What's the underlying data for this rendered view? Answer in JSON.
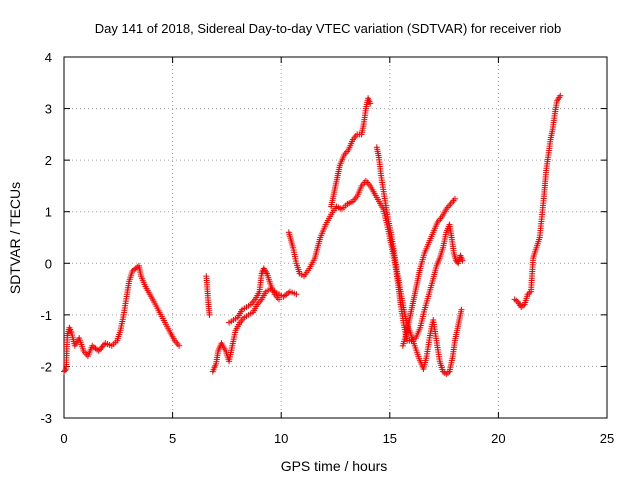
{
  "chart_data": {
    "type": "scatter",
    "title": "Day 141 of 2018, Sidereal Day-to-day VTEC variation (SDTVAR) for receiver riob",
    "xlabel": "GPS time / hours",
    "ylabel": "SDTVAR / TECUs",
    "xlim": [
      0,
      25
    ],
    "ylim": [
      -3,
      4
    ],
    "x_ticks": [
      "0",
      "5",
      "10",
      "15",
      "20",
      "25"
    ],
    "y_ticks": [
      "-3",
      "-2",
      "-1",
      "0",
      "1",
      "2",
      "3",
      "4"
    ],
    "grid": true,
    "marker": "+",
    "color": "#ff0000",
    "series": [
      {
        "name": "SDTVAR",
        "segments": [
          [
            [
              0.0,
              -2.1
            ],
            [
              0.1,
              -2.05
            ],
            [
              0.15,
              -1.4
            ],
            [
              0.25,
              -1.25
            ],
            [
              0.35,
              -1.35
            ],
            [
              0.5,
              -1.6
            ],
            [
              0.7,
              -1.45
            ],
            [
              0.9,
              -1.7
            ],
            [
              1.1,
              -1.8
            ],
            [
              1.3,
              -1.6
            ],
            [
              1.6,
              -1.7
            ],
            [
              1.9,
              -1.55
            ],
            [
              2.2,
              -1.6
            ],
            [
              2.45,
              -1.5
            ],
            [
              2.6,
              -1.3
            ],
            [
              2.75,
              -1.0
            ],
            [
              2.9,
              -0.6
            ],
            [
              3.0,
              -0.35
            ],
            [
              3.15,
              -0.15
            ],
            [
              3.3,
              -0.1
            ],
            [
              3.45,
              -0.05
            ],
            [
              3.55,
              -0.25
            ],
            [
              3.75,
              -0.45
            ],
            [
              3.95,
              -0.6
            ],
            [
              4.15,
              -0.75
            ],
            [
              4.4,
              -0.95
            ],
            [
              4.65,
              -1.15
            ],
            [
              4.9,
              -1.35
            ],
            [
              5.1,
              -1.5
            ],
            [
              5.3,
              -1.6
            ]
          ],
          [
            [
              6.55,
              -0.25
            ],
            [
              6.6,
              -0.5
            ],
            [
              6.65,
              -0.8
            ],
            [
              6.7,
              -1.0
            ]
          ],
          [
            [
              6.85,
              -2.1
            ],
            [
              7.0,
              -1.95
            ],
            [
              7.1,
              -1.7
            ],
            [
              7.25,
              -1.55
            ],
            [
              7.45,
              -1.7
            ],
            [
              7.6,
              -1.9
            ],
            [
              7.75,
              -1.6
            ],
            [
              7.9,
              -1.3
            ],
            [
              8.1,
              -1.15
            ],
            [
              8.3,
              -1.05
            ],
            [
              8.5,
              -1.0
            ],
            [
              8.7,
              -0.95
            ],
            [
              8.9,
              -0.8
            ],
            [
              9.1,
              -0.7
            ],
            [
              9.3,
              -0.55
            ],
            [
              9.5,
              -0.5
            ],
            [
              9.7,
              -0.55
            ],
            [
              9.9,
              -0.6
            ],
            [
              10.1,
              -0.65
            ],
            [
              10.4,
              -0.55
            ],
            [
              10.7,
              -0.6
            ]
          ],
          [
            [
              7.6,
              -1.15
            ],
            [
              7.8,
              -1.1
            ],
            [
              8.0,
              -1.05
            ],
            [
              8.2,
              -0.9
            ],
            [
              8.4,
              -0.85
            ],
            [
              8.6,
              -0.8
            ],
            [
              8.8,
              -0.7
            ],
            [
              9.0,
              -0.55
            ],
            [
              9.1,
              -0.2
            ],
            [
              9.2,
              -0.1
            ],
            [
              9.35,
              -0.2
            ],
            [
              9.5,
              -0.4
            ],
            [
              9.7,
              -0.6
            ],
            [
              9.9,
              -0.7
            ]
          ],
          [
            [
              10.35,
              0.6
            ],
            [
              10.45,
              0.45
            ],
            [
              10.55,
              0.3
            ],
            [
              10.7,
              0.0
            ],
            [
              10.85,
              -0.2
            ],
            [
              11.05,
              -0.25
            ],
            [
              11.3,
              -0.1
            ],
            [
              11.55,
              0.1
            ],
            [
              11.8,
              0.5
            ],
            [
              12.05,
              0.75
            ],
            [
              12.3,
              0.95
            ],
            [
              12.55,
              1.1
            ],
            [
              12.8,
              1.05
            ],
            [
              13.05,
              1.15
            ],
            [
              13.3,
              1.2
            ],
            [
              13.5,
              1.3
            ],
            [
              13.7,
              1.5
            ],
            [
              13.9,
              1.6
            ],
            [
              14.1,
              1.5
            ],
            [
              14.3,
              1.35
            ],
            [
              14.5,
              1.2
            ],
            [
              14.7,
              1.05
            ],
            [
              14.9,
              0.7
            ],
            [
              15.05,
              0.4
            ],
            [
              15.2,
              0.1
            ],
            [
              15.35,
              -0.3
            ],
            [
              15.5,
              -0.8
            ],
            [
              15.65,
              -1.2
            ],
            [
              15.8,
              -1.5
            ],
            [
              16.0,
              -1.5
            ],
            [
              16.2,
              -1.45
            ],
            [
              16.4,
              -1.25
            ],
            [
              16.6,
              -0.9
            ],
            [
              16.8,
              -0.6
            ],
            [
              17.0,
              -0.3
            ],
            [
              17.15,
              -0.05
            ],
            [
              17.3,
              0.1
            ],
            [
              17.45,
              0.3
            ],
            [
              17.6,
              0.6
            ],
            [
              17.75,
              0.75
            ],
            [
              17.85,
              0.5
            ],
            [
              17.95,
              0.2
            ],
            [
              18.05,
              0.05
            ],
            [
              18.15,
              0.0
            ],
            [
              18.25,
              0.15
            ],
            [
              18.35,
              0.05
            ]
          ],
          [
            [
              12.3,
              1.1
            ],
            [
              12.5,
              1.5
            ],
            [
              12.7,
              1.9
            ],
            [
              12.9,
              2.1
            ],
            [
              13.1,
              2.2
            ],
            [
              13.3,
              2.4
            ],
            [
              13.5,
              2.5
            ],
            [
              13.7,
              2.5
            ],
            [
              13.8,
              2.7
            ],
            [
              13.9,
              3.0
            ],
            [
              14.0,
              3.2
            ],
            [
              14.1,
              3.1
            ]
          ],
          [
            [
              14.4,
              2.25
            ],
            [
              14.5,
              2.05
            ],
            [
              14.6,
              1.7
            ],
            [
              14.75,
              1.3
            ],
            [
              14.9,
              0.9
            ],
            [
              15.05,
              0.6
            ],
            [
              15.2,
              0.2
            ],
            [
              15.35,
              -0.2
            ],
            [
              15.5,
              -0.55
            ],
            [
              15.65,
              -0.9
            ],
            [
              15.8,
              -1.2
            ],
            [
              15.95,
              -1.35
            ],
            [
              16.15,
              -1.6
            ],
            [
              16.35,
              -1.85
            ],
            [
              16.55,
              -2.05
            ],
            [
              16.7,
              -1.8
            ],
            [
              16.85,
              -1.4
            ],
            [
              17.0,
              -1.1
            ],
            [
              17.15,
              -1.5
            ],
            [
              17.3,
              -1.9
            ],
            [
              17.45,
              -2.1
            ],
            [
              17.6,
              -2.15
            ],
            [
              17.75,
              -2.1
            ],
            [
              17.9,
              -1.8
            ],
            [
              18.0,
              -1.5
            ],
            [
              18.1,
              -1.3
            ],
            [
              18.2,
              -1.1
            ],
            [
              18.3,
              -0.9
            ]
          ],
          [
            [
              15.6,
              -1.6
            ],
            [
              15.8,
              -1.3
            ],
            [
              16.0,
              -0.9
            ],
            [
              16.2,
              -0.5
            ],
            [
              16.4,
              -0.1
            ],
            [
              16.6,
              0.2
            ],
            [
              16.8,
              0.4
            ],
            [
              17.0,
              0.6
            ],
            [
              17.2,
              0.8
            ],
            [
              17.4,
              0.9
            ],
            [
              17.6,
              1.05
            ],
            [
              17.8,
              1.15
            ],
            [
              18.0,
              1.25
            ]
          ],
          [
            [
              20.75,
              -0.7
            ],
            [
              20.9,
              -0.75
            ],
            [
              21.05,
              -0.85
            ],
            [
              21.2,
              -0.8
            ],
            [
              21.35,
              -0.6
            ],
            [
              21.5,
              -0.55
            ],
            [
              21.6,
              0.1
            ],
            [
              21.75,
              0.3
            ],
            [
              21.9,
              0.5
            ],
            [
              22.0,
              0.9
            ],
            [
              22.1,
              1.3
            ],
            [
              22.2,
              1.8
            ],
            [
              22.3,
              2.1
            ],
            [
              22.4,
              2.4
            ],
            [
              22.5,
              2.6
            ],
            [
              22.6,
              2.9
            ],
            [
              22.7,
              3.15
            ],
            [
              22.85,
              3.25
            ]
          ]
        ]
      }
    ]
  }
}
